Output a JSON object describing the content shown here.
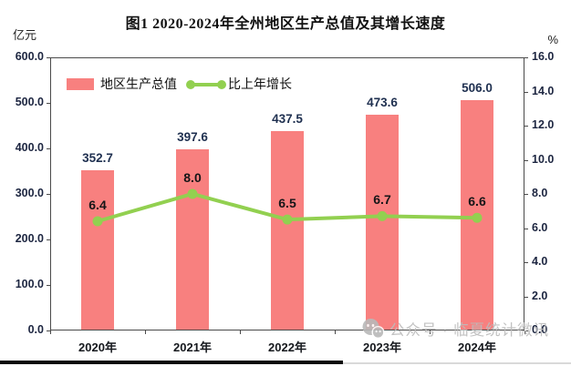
{
  "header": {
    "title": "图1 2020-2024年全州地区生产总值及其增长速度",
    "left_axis_unit": "亿元",
    "right_axis_unit": "%"
  },
  "legend": {
    "bar_label": "地区生产总值",
    "line_label": "比上年增长"
  },
  "colors": {
    "bar": "#F8807F",
    "line": "#92D050",
    "axis_border": "#4a4a4a",
    "bar_value_label": "#1f3050",
    "watermark": "#bcbcbc"
  },
  "chart_data": {
    "type": "bar+line",
    "title": "图1 2020-2024年全州地区生产总值及其增长速度",
    "categories": [
      "2020年",
      "2021年",
      "2022年",
      "2023年",
      "2024年"
    ],
    "series": [
      {
        "name": "地区生产总值",
        "type": "bar",
        "axis": "left",
        "unit": "亿元",
        "color": "#F8807F",
        "values": [
          352.7,
          397.6,
          437.5,
          473.6,
          506.0
        ]
      },
      {
        "name": "比上年增长",
        "type": "line",
        "axis": "right",
        "unit": "%",
        "color": "#92D050",
        "values": [
          6.4,
          8.0,
          6.5,
          6.7,
          6.6
        ]
      }
    ],
    "left_axis": {
      "min": 0,
      "max": 600,
      "step": 100,
      "tick_labels": [
        "600.0",
        "500.0",
        "400.0",
        "300.0",
        "200.0",
        "100.0",
        "0.0"
      ]
    },
    "right_axis": {
      "min": 0,
      "max": 16,
      "step": 2,
      "tick_labels": [
        "16.0",
        "14.0",
        "12.0",
        "10.0",
        "8.0",
        "6.0",
        "4.0",
        "2.0",
        "0.0"
      ]
    },
    "grid": false,
    "legend_position": "top-left-inside"
  },
  "watermark": {
    "icon": "wechat-icon",
    "text": "公众号 · 临夏统计微讯"
  }
}
